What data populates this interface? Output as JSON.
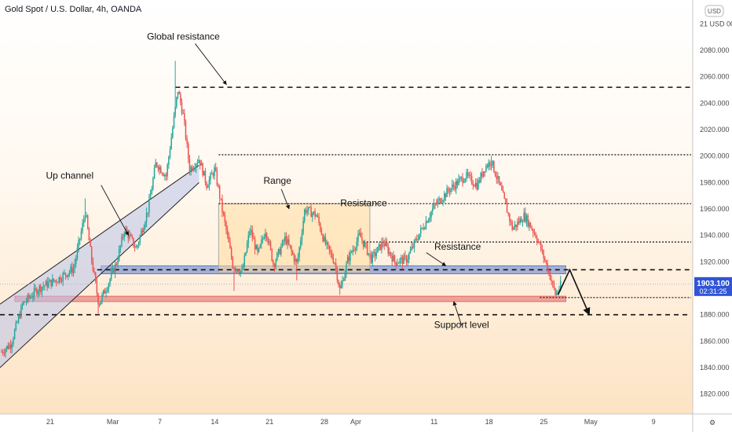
{
  "symbol_title": "Gold Spot / U.S. Dollar, 4h, OANDA",
  "top_right_badge": "USD",
  "top_right_badge_prefix": "21",
  "chart_data": {
    "type": "candlestick",
    "ylim": [
      1805,
      2118
    ],
    "y_ticks": [
      1820,
      1840,
      1860,
      1880,
      1900,
      1920,
      1940,
      1960,
      1980,
      2000,
      2020,
      2040,
      2060,
      2080,
      2100
    ],
    "y_tick_labels": [
      "1820.000",
      "1840.000",
      "1860.000",
      "1880.000",
      "1900.000",
      "1920.000",
      "1940.000",
      "1960.000",
      "1980.000",
      "2000.000",
      "2020.000",
      "2040.000",
      "2060.000",
      "2080.000",
      "21 USD 00"
    ],
    "x_ticks": [
      {
        "label": "21",
        "t": 0
      },
      {
        "label": "Mar",
        "t": 8
      },
      {
        "label": "7",
        "t": 14
      },
      {
        "label": "14",
        "t": 21
      },
      {
        "label": "21",
        "t": 28
      },
      {
        "label": "28",
        "t": 35
      },
      {
        "label": "Apr",
        "t": 39
      },
      {
        "label": "11",
        "t": 49
      },
      {
        "label": "18",
        "t": 56
      },
      {
        "label": "25",
        "t": 63
      },
      {
        "label": "May",
        "t": 69
      },
      {
        "label": "9",
        "t": 77
      }
    ],
    "x_range_days": [
      -6.4,
      82
    ],
    "current_price": {
      "value": 1903.1,
      "label": "1903.100",
      "timer": "02:31:25"
    },
    "anchors": [
      {
        "t": -6.2,
        "p": 1852
      },
      {
        "t": -5.0,
        "p": 1858
      },
      {
        "t": -3.5,
        "p": 1888
      },
      {
        "t": -1.5,
        "p": 1900
      },
      {
        "t": 1.0,
        "p": 1907
      },
      {
        "t": 3.0,
        "p": 1915
      },
      {
        "t": 4.5,
        "p": 1958
      },
      {
        "t": 5.2,
        "p": 1925
      },
      {
        "t": 6.2,
        "p": 1888
      },
      {
        "t": 7.5,
        "p": 1905
      },
      {
        "t": 8.5,
        "p": 1920
      },
      {
        "t": 9.5,
        "p": 1945
      },
      {
        "t": 11.0,
        "p": 1930
      },
      {
        "t": 12.5,
        "p": 1960
      },
      {
        "t": 13.5,
        "p": 1995
      },
      {
        "t": 14.8,
        "p": 1985
      },
      {
        "t": 15.6,
        "p": 2020
      },
      {
        "t": 16.3,
        "p": 2050
      },
      {
        "t": 17.0,
        "p": 2030
      },
      {
        "t": 17.8,
        "p": 1990
      },
      {
        "t": 19.0,
        "p": 1998
      },
      {
        "t": 20.0,
        "p": 1978
      },
      {
        "t": 21.0,
        "p": 1990
      },
      {
        "t": 22.0,
        "p": 1958
      },
      {
        "t": 23.3,
        "p": 1918
      },
      {
        "t": 24.5,
        "p": 1912
      },
      {
        "t": 25.5,
        "p": 1945
      },
      {
        "t": 26.5,
        "p": 1925
      },
      {
        "t": 27.5,
        "p": 1945
      },
      {
        "t": 28.5,
        "p": 1918
      },
      {
        "t": 30.0,
        "p": 1938
      },
      {
        "t": 31.5,
        "p": 1918
      },
      {
        "t": 32.5,
        "p": 1960
      },
      {
        "t": 34.0,
        "p": 1955
      },
      {
        "t": 35.0,
        "p": 1935
      },
      {
        "t": 36.3,
        "p": 1920
      },
      {
        "t": 37.0,
        "p": 1898
      },
      {
        "t": 38.0,
        "p": 1922
      },
      {
        "t": 39.5,
        "p": 1940
      },
      {
        "t": 41.0,
        "p": 1922
      },
      {
        "t": 42.5,
        "p": 1935
      },
      {
        "t": 44.0,
        "p": 1920
      },
      {
        "t": 45.5,
        "p": 1922
      },
      {
        "t": 47.0,
        "p": 1940
      },
      {
        "t": 49.0,
        "p": 1962
      },
      {
        "t": 51.0,
        "p": 1975
      },
      {
        "t": 53.0,
        "p": 1985
      },
      {
        "t": 54.5,
        "p": 1978
      },
      {
        "t": 55.5,
        "p": 1992
      },
      {
        "t": 56.3,
        "p": 1996
      },
      {
        "t": 57.5,
        "p": 1975
      },
      {
        "t": 59.0,
        "p": 1945
      },
      {
        "t": 60.5,
        "p": 1955
      },
      {
        "t": 62.0,
        "p": 1940
      },
      {
        "t": 63.5,
        "p": 1915
      },
      {
        "t": 64.5,
        "p": 1895
      },
      {
        "t": 65.2,
        "p": 1903
      }
    ],
    "annotations": [
      {
        "text": "Global resistance",
        "t": 17.0,
        "p": 2088
      },
      {
        "text": "Up channel",
        "t": 2.5,
        "p": 1983
      },
      {
        "text": "Range",
        "t": 29.0,
        "p": 1979
      },
      {
        "text": "Resistance",
        "t": 40.0,
        "p": 1962
      },
      {
        "text": "Resistance",
        "t": 52.0,
        "p": 1929
      },
      {
        "text": "Support level",
        "t": 52.5,
        "p": 1870
      }
    ],
    "levels": [
      {
        "p": 2052,
        "style": "dashed",
        "from_t": 16.0
      },
      {
        "p": 2001,
        "style": "dotted",
        "from_t": 21.5
      },
      {
        "p": 1964,
        "style": "dotted",
        "from_t": 21.5
      },
      {
        "p": 1935,
        "style": "dotted",
        "from_t": 40.0
      },
      {
        "p": 1914,
        "style": "dashed",
        "from_t": 6.0
      },
      {
        "p": 1893,
        "style": "dotted",
        "from_t": 62.5
      },
      {
        "p": 1880,
        "style": "dashed",
        "from_t": -6.4
      }
    ],
    "zones": [
      {
        "kind": "resistance-zone",
        "p_from": 1911,
        "p_to": 1917,
        "t_from": 6.5,
        "t_to": 65.8,
        "color": "#5b7ccf"
      },
      {
        "kind": "support-zone",
        "p_from": 1890,
        "p_to": 1894,
        "t_from": -4.5,
        "t_to": 65.8,
        "color": "#e06666"
      },
      {
        "kind": "range-box",
        "p_from": 1912,
        "p_to": 1964,
        "t_from": 21.5,
        "t_to": 40.8,
        "color": "#ffdca0"
      }
    ],
    "channel": {
      "lower": [
        {
          "t": -6.4,
          "p": 1840
        },
        {
          "t": 19.0,
          "p": 1980
        }
      ],
      "upper": [
        {
          "t": -6.4,
          "p": 1888
        },
        {
          "t": 19.0,
          "p": 1993
        }
      ]
    },
    "colors": {
      "up": "#26a69a",
      "down": "#ef5350",
      "bg_top": "#ffffff",
      "bg_bottom": "#fde3c3"
    }
  }
}
